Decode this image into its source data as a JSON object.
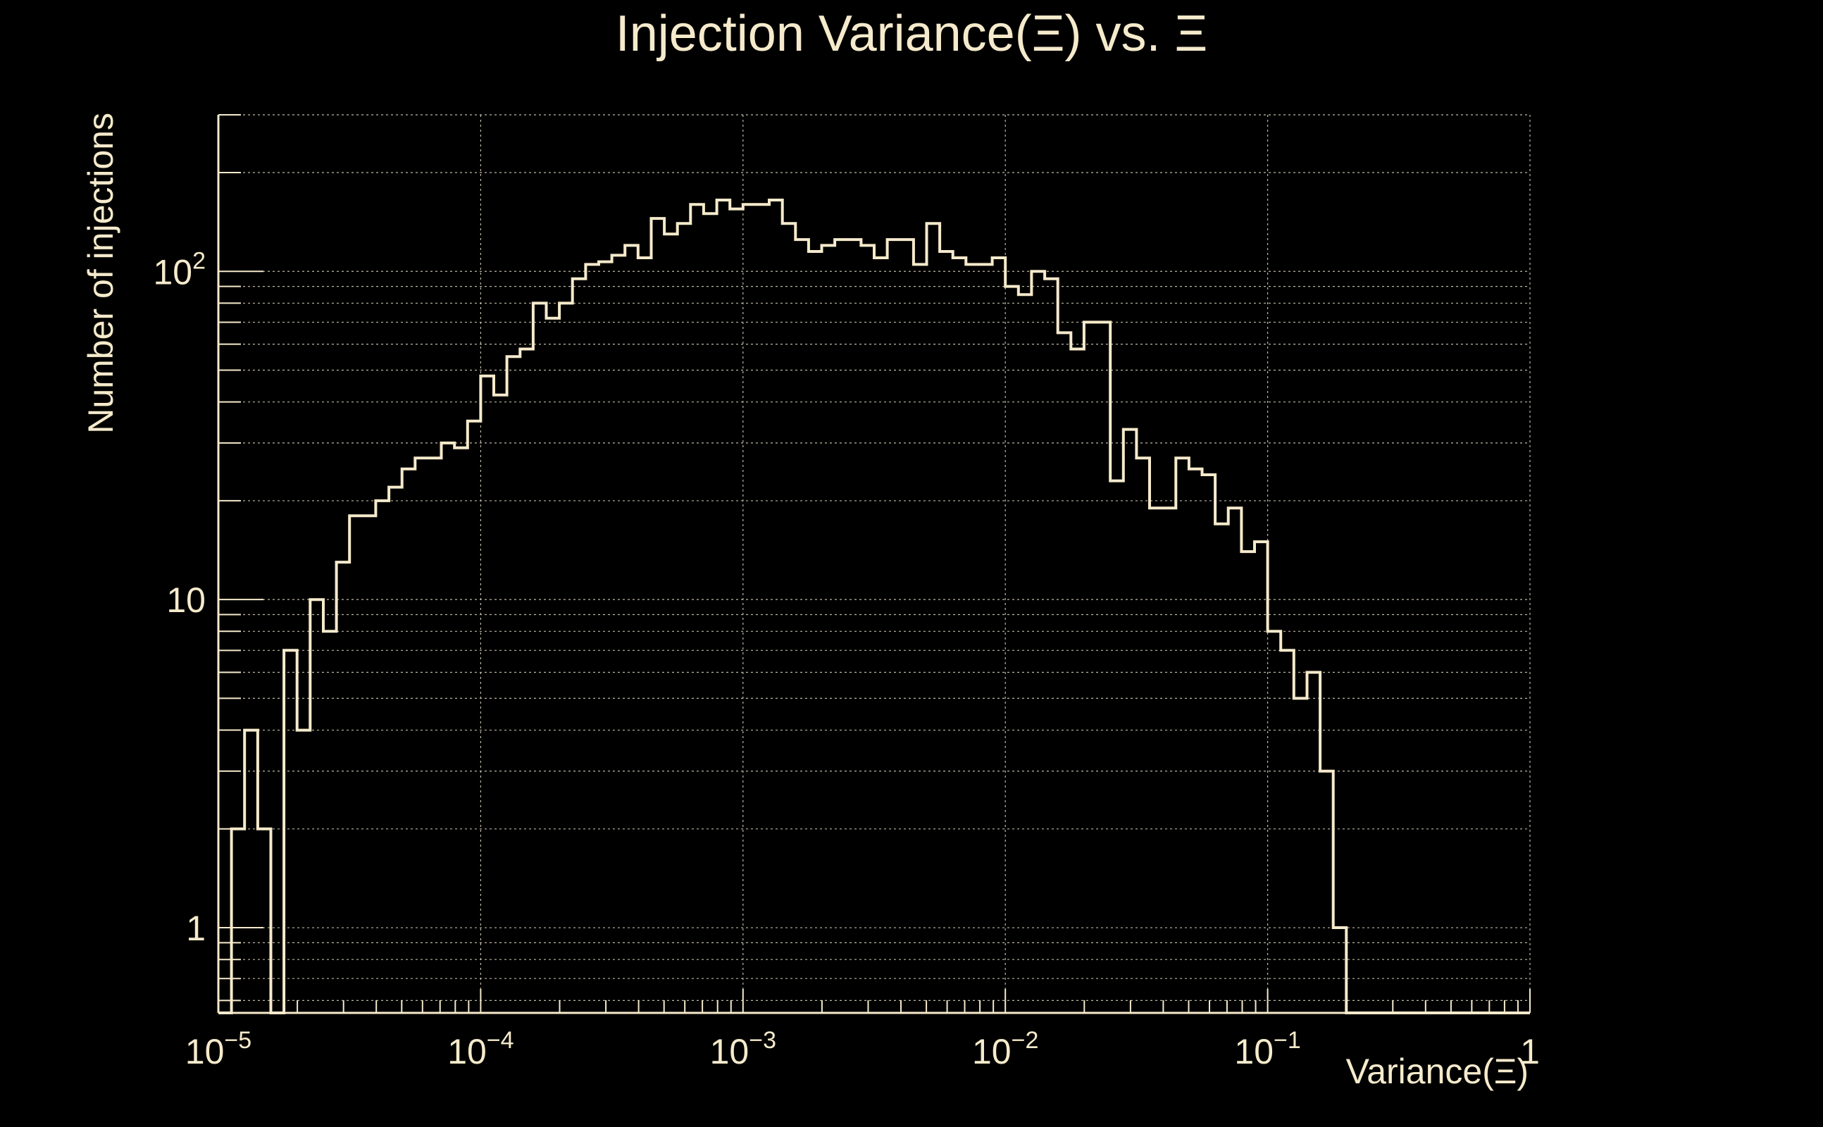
{
  "chart_data": {
    "type": "histogram",
    "title": "Injection Variance(Ξ) vs. Ξ",
    "xlabel": "Variance(Ξ)",
    "ylabel": "Number of injections",
    "xscale": "log",
    "yscale": "log",
    "xlim": [
      1e-05,
      1
    ],
    "ylim": [
      0.55,
      300
    ],
    "grid": true,
    "colors": {
      "background": "#000000",
      "line": "#F5EACB",
      "grid": "#BFB8A6"
    },
    "x_ticks": [
      {
        "base": "10",
        "exp": "−5"
      },
      {
        "base": "10",
        "exp": "−4"
      },
      {
        "base": "10",
        "exp": "−3"
      },
      {
        "base": "10",
        "exp": "−2"
      },
      {
        "base": "10",
        "exp": "−1"
      },
      {
        "base": "1",
        "exp": ""
      }
    ],
    "y_ticks": [
      {
        "value": 1,
        "base": "1",
        "exp": ""
      },
      {
        "value": 10,
        "base": "10",
        "exp": ""
      },
      {
        "value": 100,
        "base": "10",
        "exp": "2"
      }
    ],
    "bins_per_decade": 20,
    "first_bin_low": 1e-05,
    "counts": [
      0,
      2,
      4,
      2,
      0,
      7,
      4,
      10,
      8,
      13,
      18,
      18,
      20,
      22,
      25,
      27,
      27,
      30,
      29,
      35,
      48,
      42,
      55,
      58,
      80,
      72,
      80,
      95,
      105,
      107,
      112,
      120,
      110,
      145,
      130,
      140,
      160,
      150,
      165,
      155,
      160,
      160,
      165,
      140,
      125,
      115,
      120,
      125,
      125,
      120,
      110,
      125,
      125,
      105,
      140,
      115,
      110,
      105,
      105,
      110,
      90,
      85,
      100,
      95,
      65,
      58,
      70,
      70,
      23,
      33,
      27,
      19,
      19,
      27,
      25,
      24,
      17,
      19,
      14,
      15,
      8,
      7,
      5,
      6,
      3,
      1,
      0,
      0,
      0,
      0,
      0,
      0,
      0,
      0,
      0,
      0,
      0,
      0,
      0,
      0
    ]
  }
}
